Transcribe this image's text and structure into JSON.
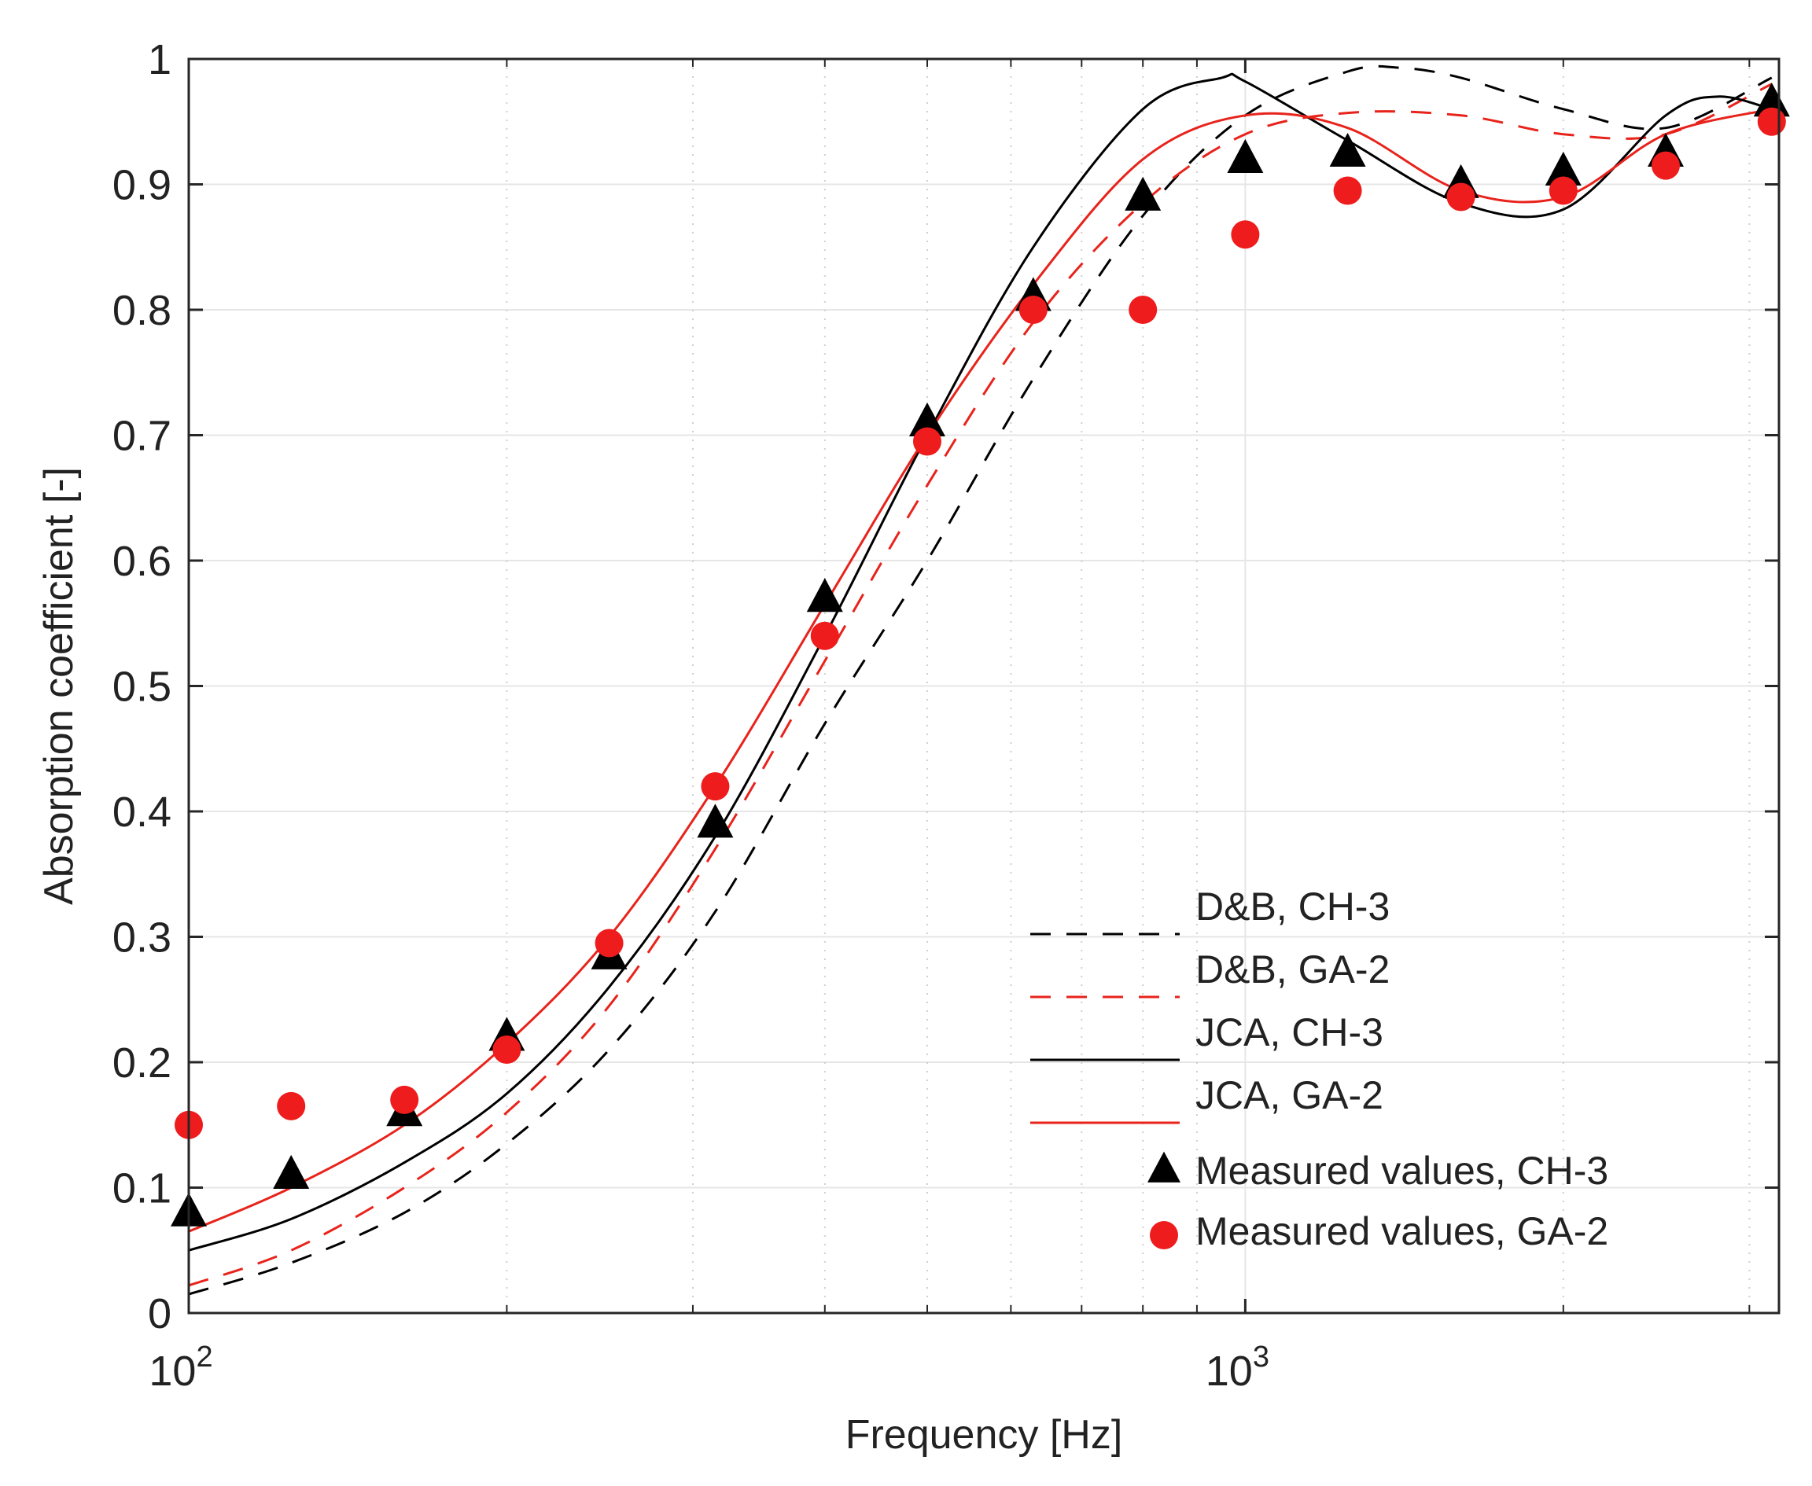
{
  "chart_data": {
    "type": "line",
    "title": "",
    "xlabel": "Frequency [Hz]",
    "ylabel": "Absorption coefficient [-]",
    "xscale": "log",
    "xlim": [
      100,
      3200
    ],
    "ylim": [
      0,
      1
    ],
    "grid": true,
    "legend_position": "bottom-right",
    "x_ticks": [
      {
        "value": 100,
        "base": "10",
        "exp": "2"
      },
      {
        "value": 1000,
        "base": "10",
        "exp": "3"
      }
    ],
    "y_ticks": [
      {
        "value": 0,
        "label": "0"
      },
      {
        "value": 0.1,
        "label": "0.1"
      },
      {
        "value": 0.2,
        "label": "0.2"
      },
      {
        "value": 0.3,
        "label": "0.3"
      },
      {
        "value": 0.4,
        "label": "0.4"
      },
      {
        "value": 0.5,
        "label": "0.5"
      },
      {
        "value": 0.6,
        "label": "0.6"
      },
      {
        "value": 0.7,
        "label": "0.7"
      },
      {
        "value": 0.8,
        "label": "0.8"
      },
      {
        "value": 0.9,
        "label": "0.9"
      },
      {
        "value": 1,
        "label": "1"
      }
    ],
    "minor_x_gridlines": [
      200,
      300,
      400,
      500,
      600,
      700,
      800,
      900,
      2000,
      3000
    ],
    "series": [
      {
        "name": "D&B, CH-3",
        "kind": "line",
        "color": "#000000",
        "dash": "dashed",
        "x": [
          100,
          125,
          160,
          200,
          250,
          315,
          400,
          500,
          630,
          800,
          1000,
          1250,
          1400,
          1600,
          2000,
          2500,
          3150
        ],
        "y": [
          0.015,
          0.04,
          0.08,
          0.135,
          0.21,
          0.32,
          0.47,
          0.6,
          0.745,
          0.875,
          0.955,
          0.99,
          0.993,
          0.985,
          0.96,
          0.945,
          0.985
        ]
      },
      {
        "name": "D&B, GA-2",
        "kind": "line",
        "color": "#e8231b",
        "dash": "dashed",
        "x": [
          100,
          125,
          160,
          200,
          250,
          315,
          400,
          500,
          630,
          800,
          1000,
          1250,
          1600,
          2000,
          2500,
          3150
        ],
        "y": [
          0.022,
          0.05,
          0.1,
          0.16,
          0.245,
          0.37,
          0.52,
          0.66,
          0.79,
          0.885,
          0.94,
          0.957,
          0.955,
          0.94,
          0.94,
          0.98
        ]
      },
      {
        "name": "JCA, CH-3",
        "kind": "line",
        "color": "#000000",
        "dash": "solid",
        "x": [
          100,
          125,
          160,
          200,
          250,
          315,
          400,
          500,
          630,
          800,
          950,
          1000,
          1250,
          1600,
          2000,
          2500,
          2800,
          3150
        ],
        "y": [
          0.05,
          0.075,
          0.12,
          0.175,
          0.26,
          0.38,
          0.54,
          0.7,
          0.85,
          0.96,
          0.985,
          0.982,
          0.935,
          0.885,
          0.88,
          0.955,
          0.97,
          0.96
        ]
      },
      {
        "name": "JCA, GA-2",
        "kind": "line",
        "color": "#e8231b",
        "dash": "solid",
        "x": [
          100,
          125,
          160,
          200,
          250,
          315,
          400,
          500,
          630,
          800,
          1000,
          1250,
          1600,
          2000,
          2500,
          3150
        ],
        "y": [
          0.065,
          0.1,
          0.15,
          0.215,
          0.3,
          0.42,
          0.565,
          0.7,
          0.82,
          0.92,
          0.955,
          0.945,
          0.895,
          0.89,
          0.94,
          0.96
        ]
      },
      {
        "name": "Measured values, CH-3",
        "kind": "marker",
        "marker": "triangle",
        "color": "#000000",
        "x": [
          100,
          125,
          160,
          200,
          250,
          315,
          400,
          500,
          630,
          800,
          1000,
          1250,
          1600,
          2000,
          2500,
          3150
        ],
        "y": [
          0.08,
          0.11,
          0.16,
          0.22,
          0.285,
          0.39,
          0.57,
          0.71,
          0.81,
          0.89,
          0.92,
          0.925,
          0.9,
          0.91,
          0.925,
          0.965
        ]
      },
      {
        "name": "Measured values, GA-2",
        "kind": "marker",
        "marker": "circle",
        "color": "#ee1c1c",
        "x": [
          100,
          125,
          160,
          200,
          250,
          315,
          400,
          500,
          630,
          800,
          1000,
          1250,
          1600,
          2000,
          2500,
          3150
        ],
        "y": [
          0.15,
          0.165,
          0.17,
          0.21,
          0.295,
          0.42,
          0.54,
          0.695,
          0.8,
          0.8,
          0.86,
          0.895,
          0.89,
          0.895,
          0.915,
          0.95
        ]
      }
    ]
  }
}
